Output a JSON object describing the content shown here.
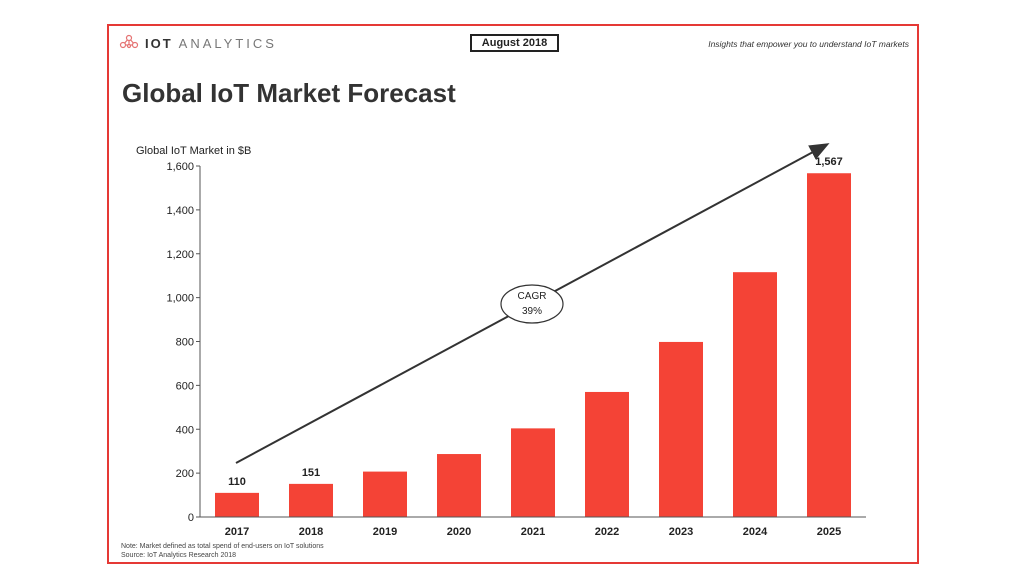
{
  "header": {
    "logo_bold": "IOT",
    "logo_light": "ANALYTICS",
    "date_badge": "August 2018",
    "tagline": "Insights that empower you to understand IoT markets"
  },
  "title": "Global IoT Market Forecast",
  "note_line1": "Note: Market defined as total spend of end-users on IoT solutions",
  "note_line2": "Source: IoT Analytics Research 2018",
  "colors": {
    "bar": "#f44336",
    "frame": "#e53935",
    "text": "#333333"
  },
  "chart_data": {
    "type": "bar",
    "ylabel": "Global IoT Market in $B",
    "categories": [
      "2017",
      "2018",
      "2019",
      "2020",
      "2021",
      "2022",
      "2023",
      "2024",
      "2025"
    ],
    "values": [
      110,
      151,
      207,
      287,
      404,
      570,
      798,
      1116,
      1567
    ],
    "data_labels": [
      "110",
      "151",
      "",
      "",
      "",
      "",
      "",
      "",
      "1,567"
    ],
    "ylim": [
      0,
      1600
    ],
    "yticks": [
      0,
      200,
      400,
      600,
      800,
      1000,
      1200,
      1400,
      1600
    ],
    "ytick_labels": [
      "0",
      "200",
      "400",
      "600",
      "800",
      "1,000",
      "1,200",
      "1,400",
      "1,600"
    ],
    "grid": false,
    "annotation": {
      "line1": "CAGR",
      "line2": "39%"
    }
  }
}
